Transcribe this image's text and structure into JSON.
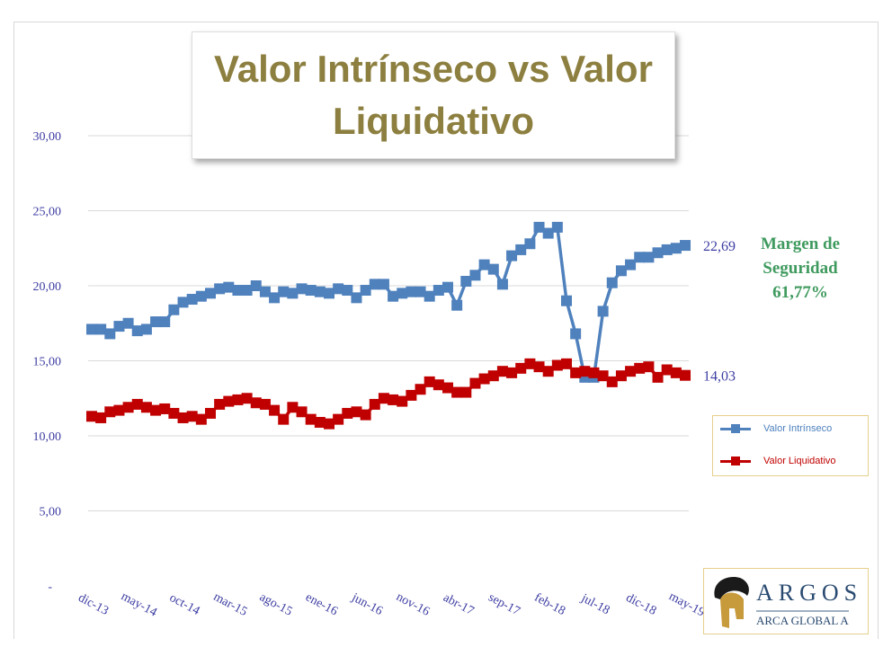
{
  "chart_data": {
    "type": "line",
    "title": "Valor Intrínseco vs Valor Liquidativo",
    "x_tick_labels": [
      "dic-13",
      "may-14",
      "oct-14",
      "mar-15",
      "ago-15",
      "ene-16",
      "jun-16",
      "nov-16",
      "abr-17",
      "sep-17",
      "feb-18",
      "jul-18",
      "dic-18",
      "may-19"
    ],
    "x_tick_every": 5,
    "y_tick_labels": [
      "-",
      "5,00",
      "10,00",
      "15,00",
      "20,00",
      "25,00",
      "30,00"
    ],
    "ylim": [
      0,
      30
    ],
    "grid": true,
    "legend_placement": "right",
    "series": [
      {
        "name": "Valor Intrínseco",
        "color": "#4f81bd",
        "values": [
          17.1,
          17.1,
          16.8,
          17.3,
          17.5,
          17.0,
          17.1,
          17.6,
          17.6,
          18.4,
          18.9,
          19.1,
          19.3,
          19.5,
          19.8,
          19.9,
          19.7,
          19.7,
          20.0,
          19.6,
          19.2,
          19.6,
          19.5,
          19.8,
          19.7,
          19.6,
          19.5,
          19.8,
          19.7,
          19.2,
          19.7,
          20.1,
          20.1,
          19.3,
          19.5,
          19.6,
          19.6,
          19.3,
          19.7,
          19.9,
          18.7,
          20.3,
          20.7,
          21.4,
          21.1,
          20.1,
          22.0,
          22.4,
          22.8,
          23.9,
          23.5,
          23.9,
          19.0,
          16.8,
          13.9,
          13.9,
          18.3,
          20.2,
          21.0,
          21.4,
          21.9,
          21.9,
          22.2,
          22.4,
          22.5,
          22.69
        ],
        "end_label": "22,69"
      },
      {
        "name": "Valor Liquidativo",
        "color": "#c00000",
        "values": [
          11.3,
          11.2,
          11.6,
          11.7,
          11.9,
          12.1,
          11.9,
          11.7,
          11.8,
          11.5,
          11.2,
          11.3,
          11.1,
          11.5,
          12.1,
          12.3,
          12.4,
          12.5,
          12.2,
          12.1,
          11.7,
          11.1,
          11.9,
          11.6,
          11.1,
          10.9,
          10.8,
          11.1,
          11.5,
          11.6,
          11.4,
          12.1,
          12.5,
          12.4,
          12.3,
          12.7,
          13.1,
          13.6,
          13.4,
          13.2,
          12.9,
          12.9,
          13.5,
          13.8,
          14.0,
          14.3,
          14.2,
          14.5,
          14.8,
          14.6,
          14.3,
          14.7,
          14.8,
          14.2,
          14.3,
          14.2,
          14.0,
          13.6,
          14.0,
          14.3,
          14.5,
          14.6,
          13.9,
          14.4,
          14.2,
          14.03
        ],
        "end_label": "14,03"
      }
    ],
    "annotation": [
      "Margen de",
      "Seguridad",
      "61,77%"
    ],
    "annotation_color": "#3f9a5e",
    "axis_label_color": "#3d3da3"
  },
  "title_lines": [
    "Valor Intrínseco vs Valor",
    "Liquidativo"
  ],
  "logo": {
    "brand": "ARGOS",
    "subtitle": "ARCA GLOBAL A"
  }
}
